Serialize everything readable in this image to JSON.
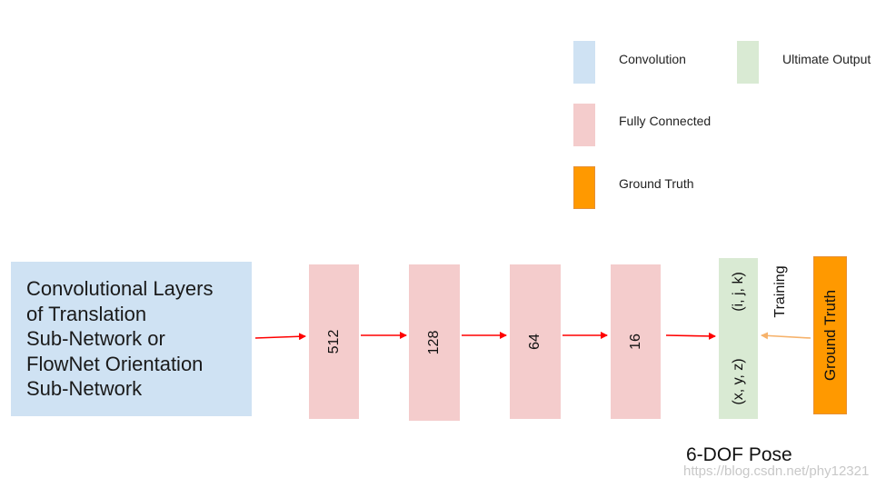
{
  "legend": {
    "items": [
      {
        "label": "Convolution",
        "color": "#cfe2f3"
      },
      {
        "label": "Ultimate Output",
        "color": "#d9ead3"
      },
      {
        "label": "Fully Connected",
        "color": "#f4cccc"
      },
      {
        "label": "Ground Truth",
        "color": "#ff9900"
      }
    ]
  },
  "conv_block": {
    "lines": [
      "Convolutional Layers",
      "of Translation",
      "Sub-Network or",
      "FlowNet Orientation",
      "Sub-Network"
    ],
    "color": "#cfe2f3"
  },
  "fc_layers": [
    {
      "label": "512"
    },
    {
      "label": "128"
    },
    {
      "label": "64"
    },
    {
      "label": "16"
    }
  ],
  "output": {
    "label_translation": "(x, y, z)",
    "label_orientation": "(i, j, k)",
    "caption": "6-DOF Pose"
  },
  "ground_truth": {
    "label": "Ground Truth"
  },
  "training": {
    "label": "Training"
  },
  "watermark": "https://blog.csdn.net/phy12321",
  "colors": {
    "arrow_main": "#ff0000",
    "arrow_training": "#f6b26b"
  }
}
